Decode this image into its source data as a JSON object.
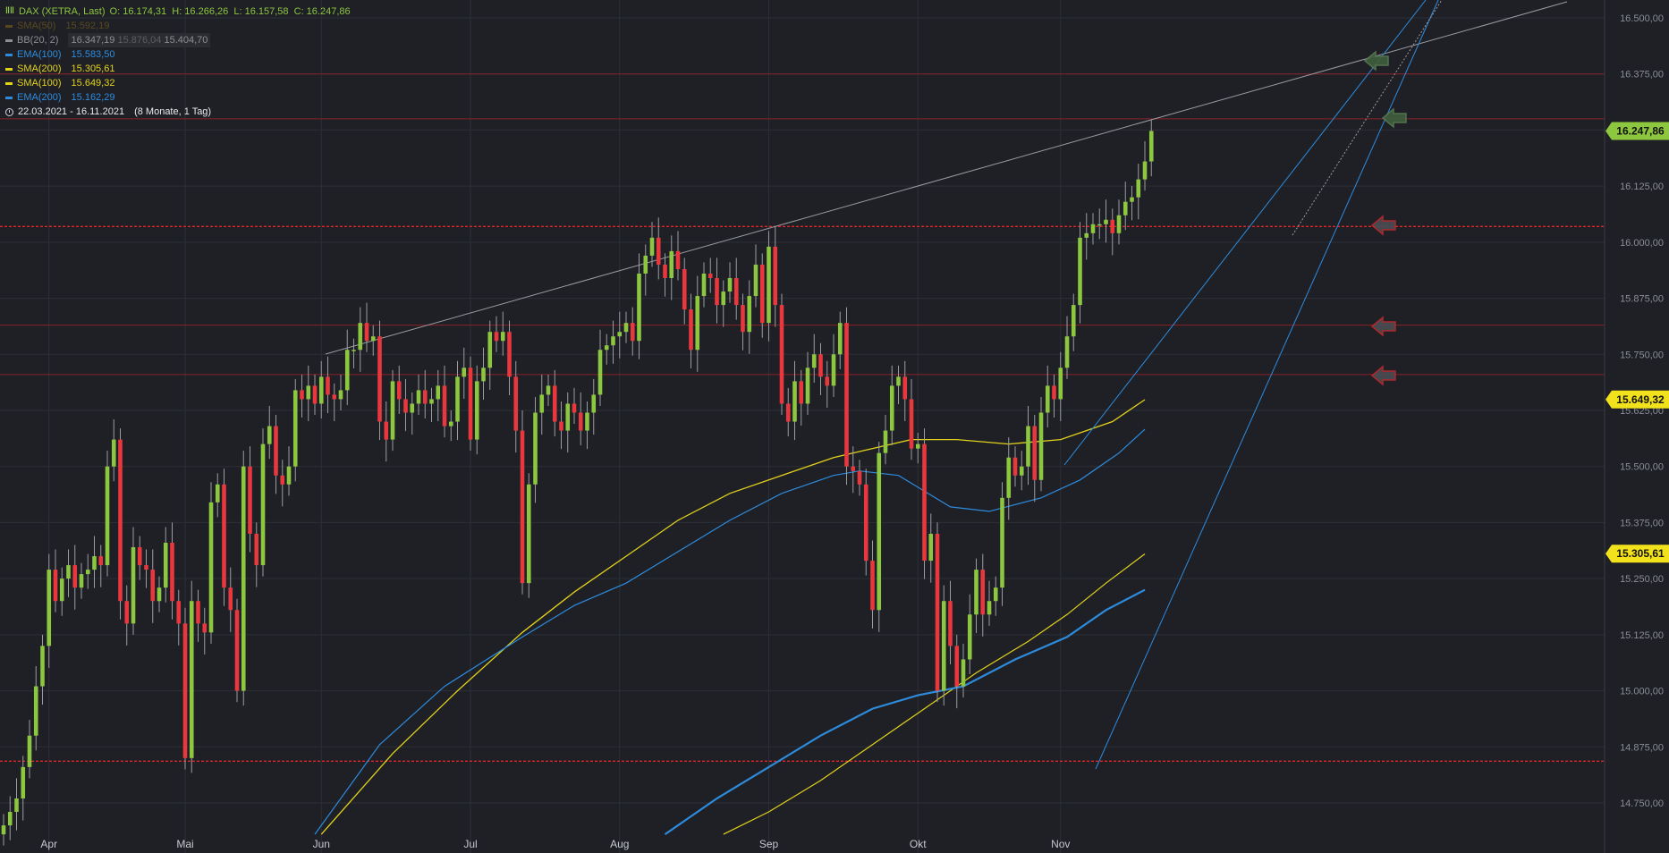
{
  "legend": {
    "title": "DAX (XETRA, Last)",
    "ohlc": "O: 16.174,31  H: 16.266,26  L: 16.157,58  C: 16.247,86",
    "rows": [
      {
        "label": "SMA(50)",
        "value": "15.592,19",
        "color": "#8a6a1a"
      },
      {
        "label": "BB(20, 2)",
        "value": "16.347,19",
        "value2": "15.876,04",
        "value3": "15.404,70",
        "color": "#8d8f94"
      },
      {
        "label": "EMA(100)",
        "value": "15.583,50",
        "color": "#2e8bdc"
      },
      {
        "label": "SMA(200)",
        "value": "15.305,61",
        "color": "#e3d21c"
      },
      {
        "label": "SMA(100)",
        "value": "15.649,32",
        "color": "#e3d21c"
      },
      {
        "label": "EMA(200)",
        "value": "15.162,29",
        "color": "#2e8bdc"
      }
    ],
    "range": "22.03.2021 - 16.11.2021",
    "range_extra": "(8 Monate, 1 Tag)"
  },
  "price_tags": [
    {
      "label": "16.247,86",
      "value": 16247.86,
      "color": "#8dc63f"
    },
    {
      "label": "15.649,32",
      "value": 15649.32,
      "color": "#f2e21c"
    },
    {
      "label": "15.305,61",
      "value": 15305.61,
      "color": "#f2e21c"
    }
  ],
  "chart_data": {
    "type": "candlestick",
    "title": "DAX (XETRA, Last)",
    "ylim": [
      14680,
      16560
    ],
    "y_ticks": [
      "16.500,00",
      "16.375,00",
      "16.250,00",
      "16.125,00",
      "16.000,00",
      "15.875,00",
      "15.750,00",
      "15.625,00",
      "15.500,00",
      "15.375,00",
      "15.250,00",
      "15.125,00",
      "15.000,00",
      "14.875,00",
      "14.750,00"
    ],
    "y_tick_values": [
      16500,
      16375,
      16250,
      16125,
      16000,
      15875,
      15750,
      15625,
      15500,
      15375,
      15250,
      15125,
      15000,
      14875,
      14750
    ],
    "x_ticks": [
      "Apr",
      "Mai",
      "Jun",
      "Jul",
      "Aug",
      "Sep",
      "Okt",
      "Nov"
    ],
    "x_tick_index": [
      7,
      28,
      49,
      72,
      95,
      118,
      141,
      163
    ],
    "closes": [
      14700,
      14730,
      14760,
      14830,
      14900,
      15010,
      15100,
      15270,
      15200,
      15250,
      15280,
      15230,
      15260,
      15270,
      15300,
      15280,
      15500,
      15560,
      15200,
      15150,
      15320,
      15280,
      15270,
      15200,
      15230,
      15330,
      15200,
      15150,
      14850,
      15200,
      15150,
      15130,
      15420,
      15460,
      15230,
      15180,
      15000,
      15500,
      15350,
      15280,
      15550,
      15590,
      15480,
      15460,
      15500,
      15670,
      15650,
      15680,
      15640,
      15700,
      15660,
      15650,
      15670,
      15760,
      15760,
      15820,
      15780,
      15790,
      15600,
      15560,
      15690,
      15650,
      15620,
      15640,
      15670,
      15640,
      15650,
      15680,
      15590,
      15600,
      15700,
      15720,
      15560,
      15690,
      15720,
      15800,
      15780,
      15800,
      15700,
      15580,
      15240,
      15460,
      15620,
      15660,
      15680,
      15600,
      15580,
      15640,
      15620,
      15580,
      15620,
      15660,
      15760,
      15770,
      15790,
      15800,
      15820,
      15780,
      15930,
      15970,
      16010,
      15950,
      15920,
      15980,
      15940,
      15850,
      15760,
      15880,
      15930,
      15920,
      15860,
      15890,
      15920,
      15860,
      15800,
      15880,
      15950,
      15820,
      15990,
      15860,
      15640,
      15600,
      15690,
      15640,
      15720,
      15750,
      15700,
      15680,
      15750,
      15820,
      15500,
      15490,
      15460,
      15290,
      15180,
      15530,
      15580,
      15680,
      15700,
      15650,
      15540,
      15550,
      15290,
      15350,
      15000,
      15200,
      15100,
      15010,
      15070,
      15170,
      15270,
      15170,
      15200,
      15230,
      15430,
      15520,
      15480,
      15500,
      15590,
      15470,
      15620,
      15680,
      15650,
      15720,
      15790,
      15860,
      16010,
      16020,
      16040,
      16040,
      16050,
      16020,
      16060,
      16090,
      16100,
      16140,
      16180,
      16248
    ],
    "sma200_label": "SMA(200)",
    "ema200_label": "EMA(200)"
  },
  "markers": [
    "arrow-green-1",
    "arrow-green-2",
    "arrow-red-1",
    "arrow-red-2",
    "arrow-red-3"
  ]
}
